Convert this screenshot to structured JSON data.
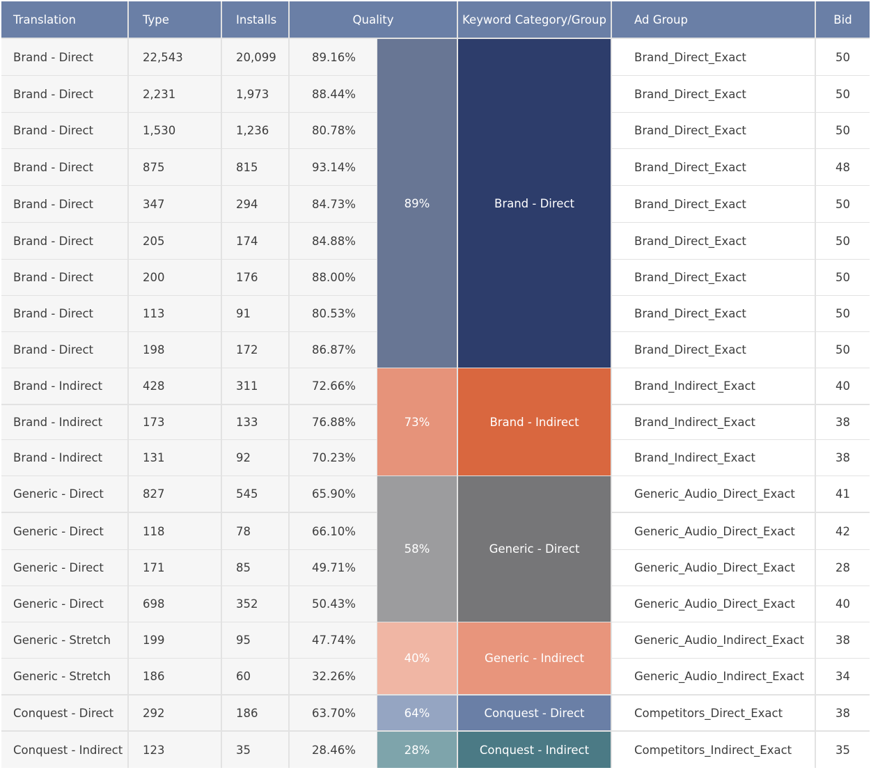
{
  "headers": {
    "translation": "Translation",
    "type": "Type",
    "installs": "Installs",
    "quality": "Quality",
    "keyword_category": "Keyword Category/Group",
    "ad_group": "Ad Group",
    "bid": "Bid"
  },
  "rows": [
    {
      "translation": "Brand - Direct",
      "type": "22,543",
      "installs": "20,099",
      "quality": "89.16%",
      "ad_group": "Brand_Direct_Exact",
      "bid": "50"
    },
    {
      "translation": "Brand - Direct",
      "type": "2,231",
      "installs": "1,973",
      "quality": "88.44%",
      "ad_group": "Brand_Direct_Exact",
      "bid": "50"
    },
    {
      "translation": "Brand - Direct",
      "type": "1,530",
      "installs": "1,236",
      "quality": "80.78%",
      "ad_group": "Brand_Direct_Exact",
      "bid": "50"
    },
    {
      "translation": "Brand - Direct",
      "type": "875",
      "installs": "815",
      "quality": "93.14%",
      "ad_group": "Brand_Direct_Exact",
      "bid": "48"
    },
    {
      "translation": "Brand - Direct",
      "type": "347",
      "installs": "294",
      "quality": "84.73%",
      "ad_group": "Brand_Direct_Exact",
      "bid": "50"
    },
    {
      "translation": "Brand - Direct",
      "type": "205",
      "installs": "174",
      "quality": "84.88%",
      "ad_group": "Brand_Direct_Exact",
      "bid": "50"
    },
    {
      "translation": "Brand - Direct",
      "type": "200",
      "installs": "176",
      "quality": "88.00%",
      "ad_group": "Brand_Direct_Exact",
      "bid": "50"
    },
    {
      "translation": "Brand - Direct",
      "type": "113",
      "installs": "91",
      "quality": "80.53%",
      "ad_group": "Brand_Direct_Exact",
      "bid": "50"
    },
    {
      "translation": "Brand - Direct",
      "type": "198",
      "installs": "172",
      "quality": "86.87%",
      "ad_group": "Brand_Direct_Exact",
      "bid": "50"
    },
    {
      "translation": "Brand - Indirect",
      "type": "428",
      "installs": "311",
      "quality": "72.66%",
      "ad_group": "Brand_Indirect_Exact",
      "bid": "40"
    },
    {
      "translation": "Brand - Indirect",
      "type": "173",
      "installs": "133",
      "quality": "76.88%",
      "ad_group": "Brand_Indirect_Exact",
      "bid": "38"
    },
    {
      "translation": "Brand - Indirect",
      "type": "131",
      "installs": "92",
      "quality": "70.23%",
      "ad_group": "Brand_Indirect_Exact",
      "bid": "38"
    },
    {
      "translation": "Generic - Direct",
      "type": "827",
      "installs": "545",
      "quality": "65.90%",
      "ad_group": "Generic_Audio_Direct_Exact",
      "bid": "41"
    },
    {
      "translation": "Generic - Direct",
      "type": "118",
      "installs": "78",
      "quality": "66.10%",
      "ad_group": "Generic_Audio_Direct_Exact",
      "bid": "42"
    },
    {
      "translation": "Generic - Direct",
      "type": "171",
      "installs": "85",
      "quality": "49.71%",
      "ad_group": "Generic_Audio_Direct_Exact",
      "bid": "28"
    },
    {
      "translation": "Generic - Direct",
      "type": "698",
      "installs": "352",
      "quality": "50.43%",
      "ad_group": "Generic_Audio_Direct_Exact",
      "bid": "40"
    },
    {
      "translation": "Generic - Stretch",
      "type": "199",
      "installs": "95",
      "quality": "47.74%",
      "ad_group": "Generic_Audio_Indirect_Exact",
      "bid": "38"
    },
    {
      "translation": "Generic - Stretch",
      "type": "186",
      "installs": "60",
      "quality": "32.26%",
      "ad_group": "Generic_Audio_Indirect_Exact",
      "bid": "34"
    },
    {
      "translation": "Conquest - Direct",
      "type": "292",
      "installs": "186",
      "quality": "63.70%",
      "ad_group": "Competitors_Direct_Exact",
      "bid": "38"
    },
    {
      "translation": "Conquest - Indirect",
      "type": "123",
      "installs": "35",
      "quality": "28.46%",
      "ad_group": "Competitors_Indirect_Exact",
      "bid": "35"
    }
  ],
  "groups": [
    {
      "start": 0,
      "count": 9,
      "quality": "89%",
      "label": "Brand - Direct",
      "quality_color": "#687694",
      "group_color": "#2d3d6b"
    },
    {
      "start": 9,
      "count": 3,
      "quality": "73%",
      "label": "Brand - Indirect",
      "quality_color": "#e6937a",
      "group_color": "#d9673f"
    },
    {
      "start": 12,
      "count": 4,
      "quality": "58%",
      "label": "Generic - Direct",
      "quality_color": "#9c9c9e",
      "group_color": "#767678"
    },
    {
      "start": 16,
      "count": 2,
      "quality": "40%",
      "label": "Generic - Indirect",
      "quality_color": "#f0b6a4",
      "group_color": "#e8957c"
    },
    {
      "start": 18,
      "count": 1,
      "quality": "64%",
      "label": "Conquest - Direct",
      "quality_color": "#95a5c2",
      "group_color": "#6a7fa6"
    },
    {
      "start": 19,
      "count": 1,
      "quality": "28%",
      "label": "Conquest - Indirect",
      "quality_color": "#7ea4ab",
      "group_color": "#4b7a85"
    }
  ],
  "colors": {
    "header_bg": "#6a7fa6",
    "cell_bg": "#f6f6f6",
    "grid_line": "#e2e2e2"
  }
}
